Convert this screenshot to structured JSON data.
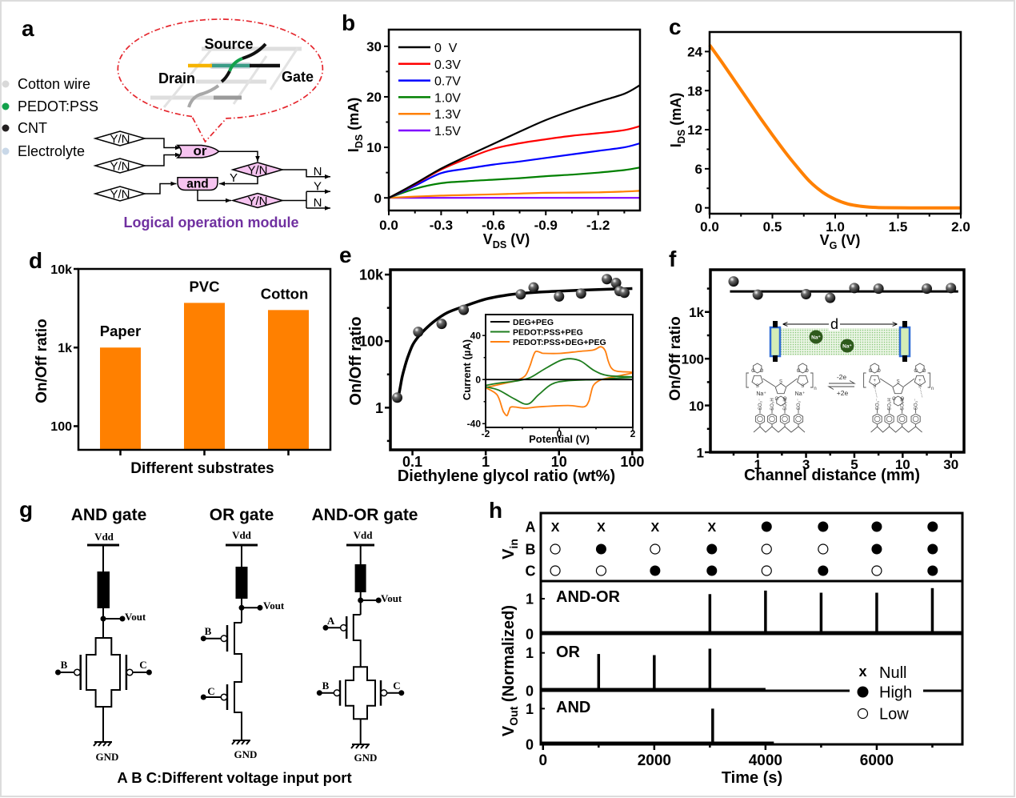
{
  "panel_labels": {
    "a": "a",
    "b": "b",
    "c": "c",
    "d": "d",
    "e": "e",
    "f": "f",
    "g": "g",
    "h": "h"
  },
  "panel_a": {
    "legend": [
      {
        "label": "Cotton wire",
        "color": "#d9d9d9"
      },
      {
        "label": "PEDOT:PSS",
        "color": "#12a14b"
      },
      {
        "label": "CNT",
        "color": "#231f20"
      },
      {
        "label": "Electrolyte",
        "color": "#c9d8e8"
      }
    ],
    "device": {
      "source": "Source",
      "drain": "Drain",
      "gate": "Gate"
    },
    "flowchart": {
      "decision": "Y/N",
      "or_gate": "or",
      "and_gate": "and",
      "yes": "Y",
      "no": "N"
    },
    "caption": "Logical operation module",
    "colors": {
      "caption": "#7030a0",
      "callout": "#e5262d",
      "gate_fill": "#f6c4f0",
      "drain_wire": "#f6b400",
      "pedot": "#12a14b",
      "cnt": "#1a1a1a",
      "cotton": "#d9d9d9"
    }
  },
  "panel_f_inset": {
    "distance": "d",
    "ion": "Na⁺",
    "oxidation": "-2e",
    "reduction": "+2e",
    "sulfonate": "SO₃⁻",
    "sulfonic_acid": "SO₃H",
    "oxygen": "O",
    "sulfur": "S",
    "repeat_unit": "n",
    "positive_charge": "+"
  },
  "panel_g": {
    "circuits": [
      {
        "title": "AND gate"
      },
      {
        "title": "OR gate"
      },
      {
        "title": "AND-OR gate"
      }
    ],
    "vdd": "Vdd",
    "vout": "Vout",
    "gnd": "GND",
    "inputs": {
      "a": "A",
      "b": "B",
      "c": "C"
    },
    "caption": "A B C:Different voltage input port"
  },
  "chart_data": [
    {
      "id": "b",
      "panel": "b",
      "type": "line",
      "title": "",
      "xlabel": {
        "main": "V",
        "sub": "DS",
        "suffix": " (V)"
      },
      "ylabel": {
        "main": "I",
        "sub": "DS",
        "suffix": " (mA)"
      },
      "xlim": [
        0,
        -1.44
      ],
      "ylim": [
        -2.5,
        33.3
      ],
      "xticks": [
        {
          "v": 0,
          "label": "0.0"
        },
        {
          "v": -0.3,
          "label": "-0.3"
        },
        {
          "v": -0.6,
          "label": "-0.6"
        },
        {
          "v": -0.9,
          "label": "-0.9"
        },
        {
          "v": -1.2,
          "label": "-1.2"
        }
      ],
      "xminor": [
        -0.15,
        -0.45,
        -0.75,
        -1.05,
        -1.35
      ],
      "yticks": [
        {
          "v": 0,
          "label": "0"
        },
        {
          "v": 10,
          "label": "10"
        },
        {
          "v": 20,
          "label": "20"
        },
        {
          "v": 30,
          "label": "30"
        }
      ],
      "yminor": [
        5,
        15,
        25
      ],
      "grid": false,
      "legend_position": "top-left",
      "x": [
        0,
        -0.15,
        -0.3,
        -0.45,
        -0.6,
        -0.75,
        -0.9,
        -1.05,
        -1.2,
        -1.35,
        -1.44
      ],
      "series": [
        {
          "name": "0  V",
          "color": "#000000",
          "values": [
            0,
            2.8,
            5.8,
            8.3,
            10.7,
            13.1,
            15.4,
            17.3,
            19.0,
            20.6,
            22.3
          ]
        },
        {
          "name": "0.3V",
          "color": "#ff0000",
          "values": [
            0,
            2.7,
            5.6,
            7.8,
            9.7,
            10.8,
            11.6,
            12.3,
            12.8,
            13.4,
            14.2
          ]
        },
        {
          "name": "0.7V",
          "color": "#0000ff",
          "values": [
            0,
            2.4,
            4.9,
            5.8,
            6.6,
            7.2,
            7.9,
            8.6,
            9.3,
            10.0,
            10.8
          ]
        },
        {
          "name": "1.0V",
          "color": "#008000",
          "values": [
            0,
            1.8,
            2.9,
            3.3,
            3.6,
            3.9,
            4.3,
            4.6,
            5.0,
            5.5,
            6.0
          ]
        },
        {
          "name": "1.3V",
          "color": "#ff8000",
          "values": [
            0,
            0.25,
            0.45,
            0.58,
            0.7,
            0.85,
            1.0,
            1.05,
            1.1,
            1.25,
            1.4
          ]
        },
        {
          "name": "1.5V",
          "color": "#8000ff",
          "values": [
            0,
            0,
            0,
            0,
            0,
            0,
            0,
            0,
            0,
            0,
            0
          ]
        }
      ]
    },
    {
      "id": "c",
      "panel": "c",
      "type": "line",
      "title": "",
      "xlabel": {
        "main": "V",
        "sub": "G",
        "suffix": " (V)"
      },
      "ylabel": {
        "main": "I",
        "sub": "DS",
        "suffix": " (mA)"
      },
      "xlim": [
        0,
        2.0
      ],
      "ylim": [
        -0.9,
        27
      ],
      "xticks": [
        {
          "v": 0,
          "label": "0.0"
        },
        {
          "v": 0.5,
          "label": "0.5"
        },
        {
          "v": 1.0,
          "label": "1.0"
        },
        {
          "v": 1.5,
          "label": "1.5"
        },
        {
          "v": 2.0,
          "label": "2.0"
        }
      ],
      "xminor": [
        0.25,
        0.75,
        1.25,
        1.75
      ],
      "yticks": [
        {
          "v": 0,
          "label": "0"
        },
        {
          "v": 6,
          "label": "6"
        },
        {
          "v": 12,
          "label": "12"
        },
        {
          "v": 18,
          "label": "18"
        },
        {
          "v": 24,
          "label": "24"
        }
      ],
      "yminor": [
        3,
        9,
        15,
        21
      ],
      "grid": false,
      "x": [
        0,
        0.1,
        0.2,
        0.3,
        0.4,
        0.5,
        0.6,
        0.7,
        0.8,
        0.9,
        1.0,
        1.1,
        1.2,
        1.3,
        1.4,
        1.6,
        1.8,
        2.0
      ],
      "series": [
        {
          "color": "#ff8000",
          "values": [
            25.0,
            22.3,
            19.5,
            16.7,
            13.9,
            11.2,
            8.6,
            6.2,
            4.0,
            2.4,
            1.3,
            0.6,
            0.25,
            0.08,
            0.02,
            0,
            0,
            0
          ]
        }
      ]
    },
    {
      "id": "d",
      "panel": "d",
      "type": "bar",
      "title": "",
      "xlabel": "Different substrates",
      "ylabel": "On/Off ratio",
      "yscale": "log",
      "ylim": [
        50,
        10000
      ],
      "yticks": [
        {
          "v": 100,
          "label": "100"
        },
        {
          "v": 1000,
          "label": "1k"
        },
        {
          "v": 10000,
          "label": "10k"
        }
      ],
      "categories": [
        "Paper",
        "PVC",
        "Cotton"
      ],
      "values": [
        1000,
        3700,
        3000
      ],
      "bar_color": "#ff8000"
    },
    {
      "id": "e",
      "panel": "e",
      "type": "scatter",
      "title": "",
      "xlabel": "Diethylene glycol ratio (wt%)",
      "ylabel": "On/Off ratio",
      "xscale": "log",
      "yscale": "log",
      "xlim": [
        0.05,
        134
      ],
      "ylim": [
        0.054,
        14000
      ],
      "xticks": [
        {
          "v": 0.1,
          "label": "0.1"
        },
        {
          "v": 1,
          "label": "1"
        },
        {
          "v": 10,
          "label": "10"
        },
        {
          "v": 100,
          "label": "100"
        }
      ],
      "yticks": [
        {
          "v": 1,
          "label": "1"
        },
        {
          "v": 100,
          "label": "100"
        },
        {
          "v": 10000,
          "label": "10k"
        }
      ],
      "yminor": [
        0.1,
        10,
        1000
      ],
      "points": {
        "x": [
          0.062,
          0.12,
          0.25,
          0.5,
          3,
          4.5,
          10,
          20,
          45,
          60,
          67,
          78
        ],
        "y": [
          2,
          190,
          330,
          870,
          2550,
          4100,
          2200,
          2700,
          7300,
          5600,
          3200,
          2850
        ]
      },
      "fit": {
        "x": [
          0.064,
          0.068,
          0.072,
          0.078,
          0.085,
          0.1,
          0.12,
          0.15,
          0.2,
          0.3,
          0.5,
          1,
          2,
          3,
          5,
          10,
          20,
          50,
          100
        ],
        "y": [
          2,
          4,
          8,
          16,
          30,
          75,
          135,
          230,
          400,
          720,
          1100,
          1830,
          2450,
          2700,
          2950,
          3170,
          3400,
          3650,
          3800
        ]
      }
    },
    {
      "id": "e-inset",
      "panel": "e",
      "type": "line",
      "title": "",
      "xlabel": "Potential (V)",
      "ylabel": "Current (µA)",
      "xlim": [
        -2,
        2
      ],
      "ylim": [
        -43.4,
        59
      ],
      "xticks": [
        {
          "v": -2,
          "label": "-2"
        },
        {
          "v": 0,
          "label": "0"
        },
        {
          "v": 2,
          "label": "2"
        }
      ],
      "xminor": [
        -1,
        1
      ],
      "yticks": [
        {
          "v": -40,
          "label": "-40"
        },
        {
          "v": 0,
          "label": "0"
        },
        {
          "v": 40,
          "label": "40"
        }
      ],
      "yminor": [
        -20,
        20
      ],
      "legend_position": "top-left",
      "series": [
        {
          "name": "DEG+PEG",
          "color": "#000000",
          "points": [
            [
              -2,
              0
            ],
            [
              2,
              0
            ]
          ]
        },
        {
          "name": "PEDOT:PSS+PEG",
          "color": "#1e7d1e",
          "points": [
            [
              -2,
              -5.3
            ],
            [
              -1.6,
              -3
            ],
            [
              -1.14,
              -1.2
            ],
            [
              -0.78,
              1.9
            ],
            [
              -0.42,
              9.2
            ],
            [
              0.02,
              17.2
            ],
            [
              0.31,
              18.9
            ],
            [
              0.6,
              16.5
            ],
            [
              0.96,
              8.0
            ],
            [
              1.33,
              3.6
            ],
            [
              2,
              2.4
            ],
            [
              1.5,
              1.2
            ],
            [
              1.03,
              0
            ],
            [
              0.24,
              -1.0
            ],
            [
              -0.2,
              -4.1
            ],
            [
              -0.56,
              -13.8
            ],
            [
              -0.86,
              -22.3
            ],
            [
              -1.22,
              -17.5
            ],
            [
              -1.65,
              -9.5
            ],
            [
              -2,
              -6.5
            ]
          ]
        },
        {
          "name": "PEDOT:PSS+DEG+PEG",
          "color": "#ff7f0e",
          "points": [
            [
              -2,
              -7.3
            ],
            [
              -1.5,
              -3.5
            ],
            [
              -1.18,
              -1
            ],
            [
              -0.93,
              3.2
            ],
            [
              -0.8,
              12
            ],
            [
              -0.72,
              20
            ],
            [
              -0.64,
              25.5
            ],
            [
              -0.5,
              24.5
            ],
            [
              -0.42,
              23.8
            ],
            [
              0.02,
              23.8
            ],
            [
              0.53,
              25.5
            ],
            [
              0.93,
              26.9
            ],
            [
              1.13,
              29.8
            ],
            [
              1.25,
              26.2
            ],
            [
              1.33,
              17
            ],
            [
              1.42,
              10.4
            ],
            [
              1.58,
              7.5
            ],
            [
              2,
              6.5
            ],
            [
              1.7,
              4
            ],
            [
              1.4,
              1.9
            ],
            [
              1.11,
              -0.5
            ],
            [
              0.93,
              -5.3
            ],
            [
              0.85,
              -14
            ],
            [
              0.8,
              -20
            ],
            [
              0.67,
              -24.7
            ],
            [
              0.24,
              -23.5
            ],
            [
              -0.56,
              -24.7
            ],
            [
              -0.93,
              -26
            ],
            [
              -1.29,
              -24.7
            ],
            [
              -1.36,
              -28
            ],
            [
              -1.42,
              -32.7
            ],
            [
              -1.5,
              -30
            ],
            [
              -1.54,
              -27.2
            ],
            [
              -1.69,
              -13.8
            ],
            [
              -2,
              -7.3
            ]
          ]
        }
      ]
    },
    {
      "id": "f",
      "panel": "f",
      "type": "scatter",
      "title": "",
      "xlabel": "Channel distance (mm)",
      "ylabel": "On/Off ratio",
      "xscale": "ordinal",
      "xlim": [
        -0.96,
        9.54
      ],
      "xticks": [
        {
          "v": 1,
          "label": "1"
        },
        {
          "v": 3,
          "label": "3"
        },
        {
          "v": 5,
          "label": "5"
        },
        {
          "v": 7,
          "label": "10"
        },
        {
          "v": 9,
          "label": "30"
        }
      ],
      "xminor": [
        0,
        2,
        4,
        6,
        8
      ],
      "yscale": "log",
      "ylim": [
        1,
        8000
      ],
      "yticks": [
        {
          "v": 1,
          "label": "1"
        },
        {
          "v": 10,
          "label": "10"
        },
        {
          "v": 100,
          "label": "100"
        },
        {
          "v": 1000,
          "label": "1k"
        }
      ],
      "yminor": [
        3.16,
        31.6,
        316,
        3160
      ],
      "points": {
        "x": [
          0,
          1,
          3,
          4,
          5,
          6,
          8,
          9
        ],
        "y": [
          4500,
          2350,
          2400,
          2000,
          3250,
          3150,
          3150,
          3250
        ]
      },
      "fit": {
        "value": 2750,
        "x_range": [
          -0.15,
          9.3
        ]
      }
    },
    {
      "id": "h",
      "panel": "h",
      "type": "line",
      "title": "",
      "xlabel": "Time (s)",
      "ylabel_in": {
        "main": "V",
        "sub": "in",
        "suffix": ""
      },
      "ylabel_out": {
        "main": "V",
        "sub": "Out",
        "suffix": " (Normalized)"
      },
      "xlim": [
        -40,
        7540
      ],
      "xticks": [
        {
          "v": 0,
          "label": "0"
        },
        {
          "v": 2000,
          "label": "2000"
        },
        {
          "v": 4000,
          "label": "4000"
        },
        {
          "v": 6000,
          "label": "6000"
        }
      ],
      "xminor": [
        1000,
        3000,
        5000,
        7000
      ],
      "ylim": [
        0,
        1.5
      ],
      "yticks": [
        {
          "v": 0,
          "label": "0"
        },
        {
          "v": 1,
          "label": "1"
        }
      ],
      "inputs": {
        "rows": [
          "A",
          "B",
          "C"
        ],
        "times": [
          220,
          1045,
          2015,
          3035,
          4020,
          5035,
          6000,
          7005
        ],
        "states": {
          "A": [
            "null",
            "null",
            "null",
            "null",
            "high",
            "high",
            "high",
            "high"
          ],
          "B": [
            "low",
            "high",
            "low",
            "high",
            "low",
            "low",
            "high",
            "high"
          ],
          "C": [
            "low",
            "low",
            "high",
            "high",
            "low",
            "high",
            "low",
            "high"
          ]
        }
      },
      "null_symbol": "X",
      "traces": [
        {
          "name": "AND-OR",
          "record_end": 7540,
          "pulses": [
            {
              "t": 1000,
              "v": 0.03
            },
            {
              "t": 2000,
              "v": 0.03
            },
            {
              "t": 3000,
              "v": 1.13
            },
            {
              "t": 4000,
              "v": 1.23
            },
            {
              "t": 5000,
              "v": 1.17
            },
            {
              "t": 6000,
              "v": 1.17
            },
            {
              "t": 7000,
              "v": 1.3
            }
          ]
        },
        {
          "name": "OR",
          "record_end": 4000,
          "pulses": [
            {
              "t": 1000,
              "v": 0.97
            },
            {
              "t": 2000,
              "v": 0.94
            },
            {
              "t": 3000,
              "v": 1.11
            }
          ]
        },
        {
          "name": "AND",
          "record_end": 4150,
          "pulses": [
            {
              "t": 3050,
              "v": 1.0
            }
          ]
        }
      ],
      "legend": [
        {
          "symbol": "x",
          "symbol_text": "x",
          "label": "Null"
        },
        {
          "symbol": "filled-circle",
          "label": "High"
        },
        {
          "symbol": "open-circle",
          "label": "Low"
        }
      ],
      "legend_position": "right"
    }
  ]
}
